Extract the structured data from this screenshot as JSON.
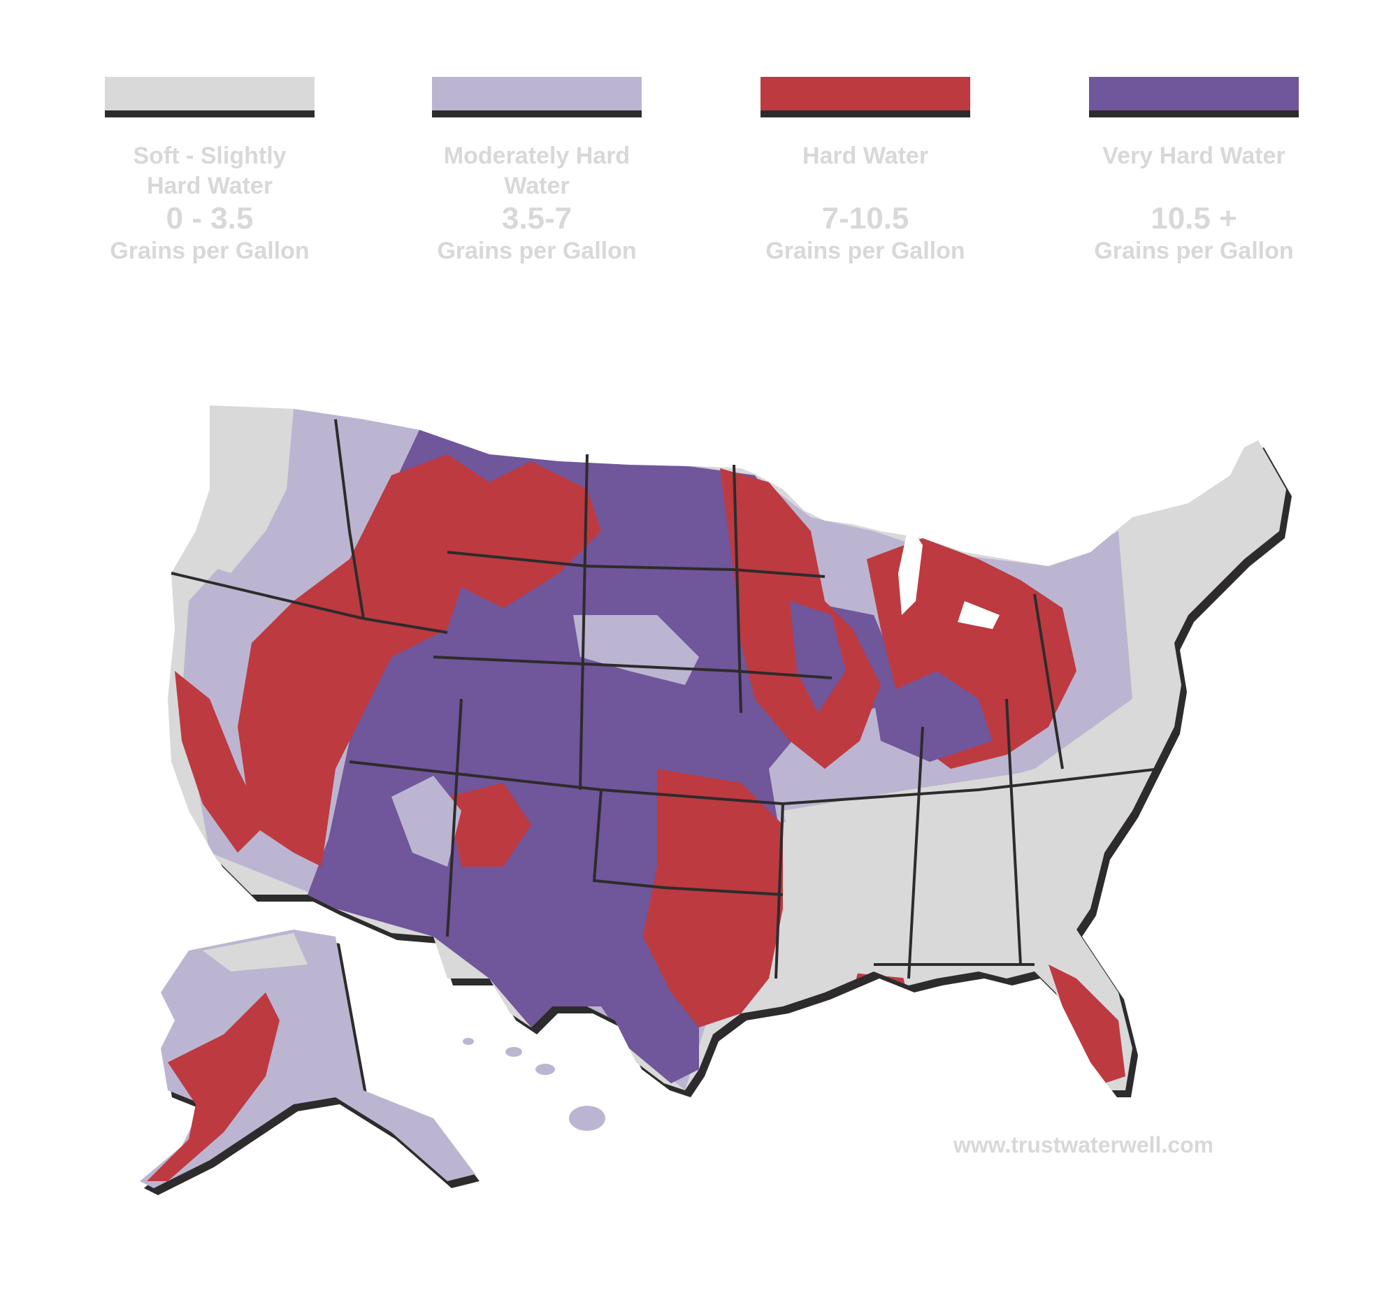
{
  "legend": {
    "items": [
      {
        "title": "Soft - Slightly Hard Water",
        "range": "0 - 3.5",
        "unit": "Grains per Gallon",
        "color": "#d9d9d9"
      },
      {
        "title": "Moderately Hard Water",
        "range": "3.5-7",
        "unit": "Grains per Gallon",
        "color": "#bcb5d1"
      },
      {
        "title": "Hard Water",
        "range": "7-10.5",
        "unit": "Grains per Gallon",
        "color": "#bd3a40"
      },
      {
        "title": "Very Hard Water",
        "range": "10.5 +",
        "unit": "Grains per Gallon",
        "color": "#70569b"
      }
    ]
  },
  "website": "www.trustwaterwell.com",
  "colors": {
    "border": "#2e2b2c",
    "text": "#d8d8d8",
    "background": "#ffffff"
  }
}
